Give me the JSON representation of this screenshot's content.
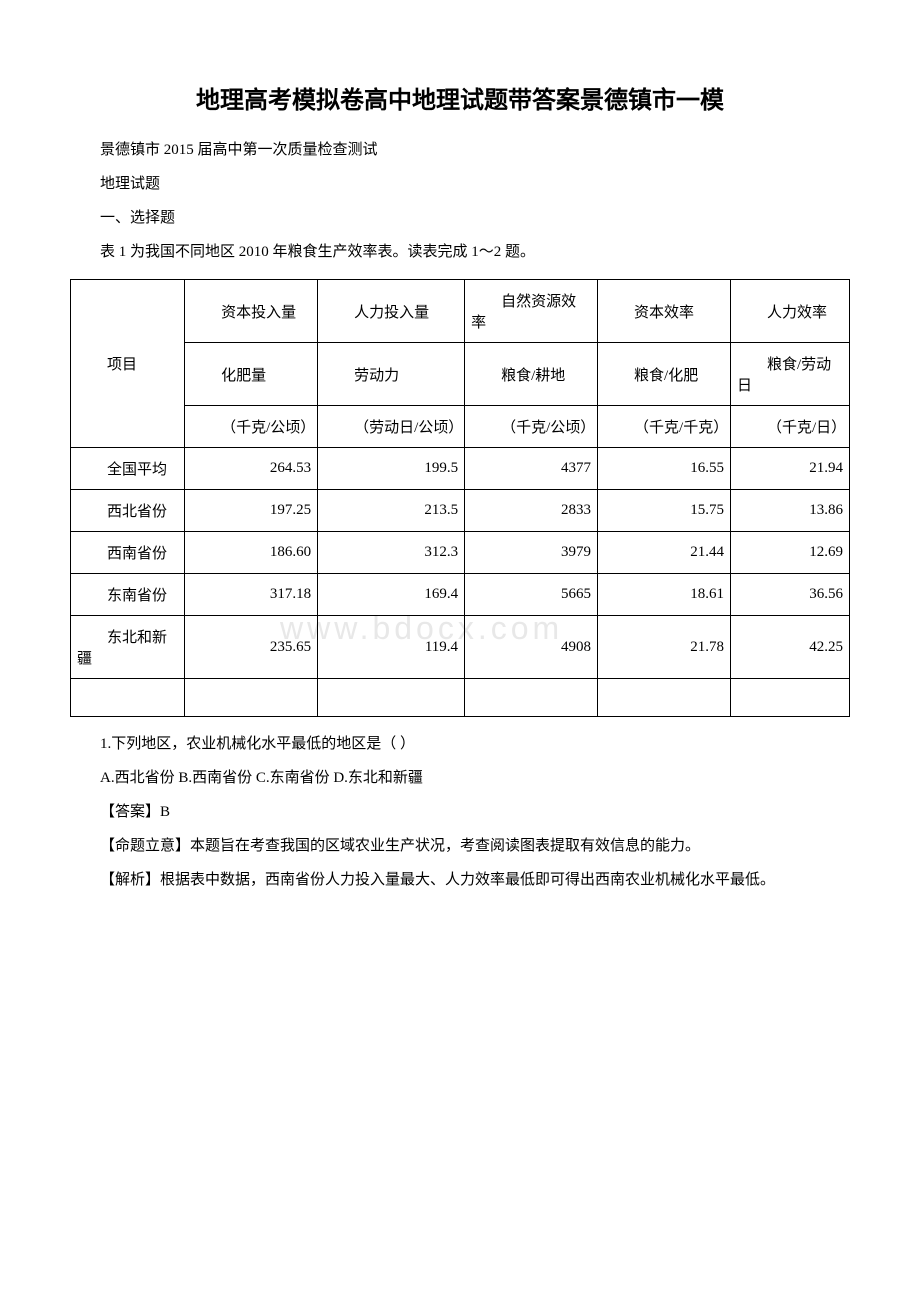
{
  "title": "地理高考模拟卷高中地理试题带答案景德镇市一模",
  "intro": {
    "line1": "景德镇市 2015 届高中第一次质量检查测试",
    "line2": "地理试题",
    "line3": "一、选择题",
    "line4": "表 1 为我国不同地区 2010 年粮食生产效率表。读表完成 1～2 题。"
  },
  "watermark": "www.bdocx.com",
  "table": {
    "columns": [
      "项目",
      "资本投入量",
      "人力投入量",
      "自然资源效率",
      "资本效率",
      "人力效率"
    ],
    "sub_columns": [
      "",
      "化肥量",
      "劳动力",
      "粮食/耕地",
      "粮食/化肥",
      "粮食/劳动日"
    ],
    "units": [
      "",
      "（千克/公顷）",
      "（劳动日/公顷）",
      "（千克/公顷）",
      "（千克/千克）",
      "（千克/日）"
    ],
    "rows": [
      {
        "label": "全国平均",
        "values": [
          "264.53",
          "199.5",
          "4377",
          "16.55",
          "21.94"
        ]
      },
      {
        "label": "西北省份",
        "values": [
          "197.25",
          "213.5",
          "2833",
          "15.75",
          "13.86"
        ]
      },
      {
        "label": "西南省份",
        "values": [
          "186.60",
          "312.3",
          "3979",
          "21.44",
          "12.69"
        ]
      },
      {
        "label": "东南省份",
        "values": [
          "317.18",
          "169.4",
          "5665",
          "18.61",
          "36.56"
        ]
      },
      {
        "label": "东北和新疆",
        "values": [
          "235.65",
          "119.4",
          "4908",
          "21.78",
          "42.25"
        ]
      }
    ]
  },
  "question": {
    "q1": "1.下列地区，农业机械化水平最低的地区是（ ）",
    "options": "A.西北省份  B.西南省份 C.东南省份 D.东北和新疆",
    "answer": "【答案】B",
    "intent": "【命题立意】本题旨在考查我国的区域农业生产状况，考查阅读图表提取有效信息的能力。",
    "analysis": "【解析】根据表中数据，西南省份人力投入量最大、人力效率最低即可得出西南农业机械化水平最低。"
  },
  "styles": {
    "background_color": "#ffffff",
    "text_color": "#000000",
    "border_color": "#000000",
    "watermark_color": "#e8e8e8",
    "title_fontsize": 24,
    "body_fontsize": 15
  }
}
